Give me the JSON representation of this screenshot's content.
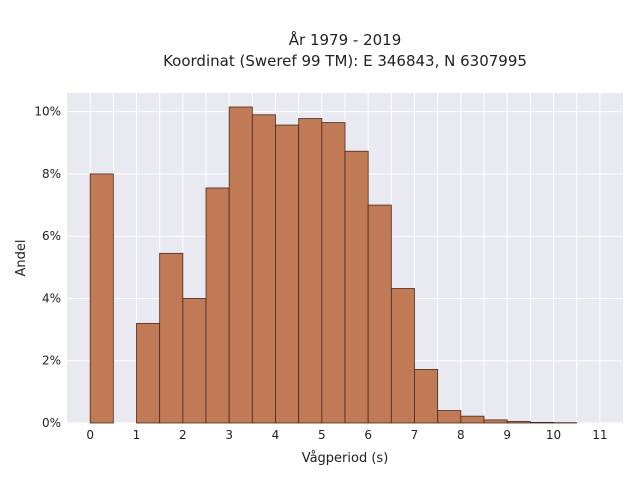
{
  "chart_data": {
    "type": "bar",
    "title": "År 1979 - 2019",
    "subtitle": "Koordinat (Sweref 99 TM): E 346843, N 6307995",
    "xlabel": "Vågperiod (s)",
    "ylabel": "Andel",
    "bin_width": 0.5,
    "bins": [
      {
        "start": 0.0,
        "value": 8.0
      },
      {
        "start": 0.5,
        "value": 0.0
      },
      {
        "start": 1.0,
        "value": 3.2
      },
      {
        "start": 1.5,
        "value": 5.45
      },
      {
        "start": 2.0,
        "value": 4.0
      },
      {
        "start": 2.5,
        "value": 7.55
      },
      {
        "start": 3.0,
        "value": 10.15
      },
      {
        "start": 3.5,
        "value": 9.9
      },
      {
        "start": 4.0,
        "value": 9.57
      },
      {
        "start": 4.5,
        "value": 9.78
      },
      {
        "start": 5.0,
        "value": 9.65
      },
      {
        "start": 5.5,
        "value": 8.73
      },
      {
        "start": 6.0,
        "value": 7.0
      },
      {
        "start": 6.5,
        "value": 4.32
      },
      {
        "start": 7.0,
        "value": 1.72
      },
      {
        "start": 7.5,
        "value": 0.4
      },
      {
        "start": 8.0,
        "value": 0.22
      },
      {
        "start": 8.5,
        "value": 0.1
      },
      {
        "start": 9.0,
        "value": 0.05
      },
      {
        "start": 9.5,
        "value": 0.02
      },
      {
        "start": 10.0,
        "value": 0.01
      }
    ],
    "xlim": [
      -0.5,
      11.5
    ],
    "ylim": [
      0,
      10.6
    ],
    "xticks": [
      0,
      1,
      2,
      3,
      4,
      5,
      6,
      7,
      8,
      9,
      10,
      11
    ],
    "xtick_labels": [
      "0",
      "1",
      "2",
      "3",
      "4",
      "5",
      "6",
      "7",
      "8",
      "9",
      "10",
      "11"
    ],
    "yticks": [
      0,
      2,
      4,
      6,
      8,
      10
    ],
    "ytick_labels": [
      "0%",
      "2%",
      "4%",
      "6%",
      "8%",
      "10%"
    ],
    "grid": true,
    "colors": {
      "bar_fill": "#c07a56",
      "bar_edge": "#4a2a1a",
      "plot_bg": "#e9e9f1",
      "grid": "#ffffff"
    }
  }
}
